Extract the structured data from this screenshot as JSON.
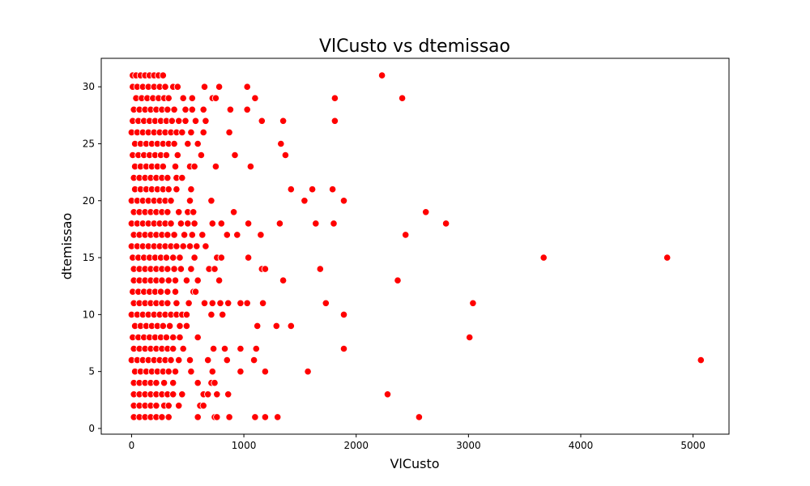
{
  "chart_data": {
    "type": "scatter",
    "title": "VlCusto vs dtemissao",
    "xlabel": "VlCusto",
    "ylabel": "dtemissao",
    "xlim": [
      -270,
      5320
    ],
    "ylim": [
      -0.5,
      32.5
    ],
    "xticks": [
      0,
      1000,
      2000,
      3000,
      4000,
      5000
    ],
    "yticks": [
      0,
      5,
      10,
      15,
      20,
      25,
      30
    ],
    "grid": false,
    "legend": "none",
    "marker_color": "#ff0000",
    "marker_edge_color": "#ffffff",
    "points": [
      [
        10,
        31
      ],
      [
        40,
        31
      ],
      [
        80,
        31
      ],
      [
        120,
        31
      ],
      [
        160,
        31
      ],
      [
        200,
        31
      ],
      [
        240,
        31
      ],
      [
        280,
        31
      ],
      [
        2230,
        31
      ],
      [
        10,
        30
      ],
      [
        50,
        30
      ],
      [
        100,
        30
      ],
      [
        150,
        30
      ],
      [
        200,
        30
      ],
      [
        250,
        30
      ],
      [
        300,
        30
      ],
      [
        370,
        30
      ],
      [
        410,
        30
      ],
      [
        650,
        30
      ],
      [
        780,
        30
      ],
      [
        1030,
        30
      ],
      [
        40,
        29
      ],
      [
        90,
        29
      ],
      [
        140,
        29
      ],
      [
        190,
        29
      ],
      [
        240,
        29
      ],
      [
        290,
        29
      ],
      [
        330,
        29
      ],
      [
        460,
        29
      ],
      [
        540,
        29
      ],
      [
        720,
        29
      ],
      [
        750,
        29
      ],
      [
        1100,
        29
      ],
      [
        1810,
        29
      ],
      [
        2410,
        29
      ],
      [
        20,
        28
      ],
      [
        70,
        28
      ],
      [
        120,
        28
      ],
      [
        170,
        28
      ],
      [
        220,
        28
      ],
      [
        270,
        28
      ],
      [
        320,
        28
      ],
      [
        380,
        28
      ],
      [
        480,
        28
      ],
      [
        540,
        28
      ],
      [
        640,
        28
      ],
      [
        880,
        28
      ],
      [
        1030,
        28
      ],
      [
        10,
        27
      ],
      [
        60,
        27
      ],
      [
        110,
        27
      ],
      [
        160,
        27
      ],
      [
        210,
        27
      ],
      [
        260,
        27
      ],
      [
        310,
        27
      ],
      [
        360,
        27
      ],
      [
        420,
        27
      ],
      [
        480,
        27
      ],
      [
        570,
        27
      ],
      [
        660,
        27
      ],
      [
        1160,
        27
      ],
      [
        1350,
        27
      ],
      [
        1810,
        27
      ],
      [
        0,
        26
      ],
      [
        50,
        26
      ],
      [
        100,
        26
      ],
      [
        150,
        26
      ],
      [
        200,
        26
      ],
      [
        250,
        26
      ],
      [
        300,
        26
      ],
      [
        350,
        26
      ],
      [
        400,
        26
      ],
      [
        450,
        26
      ],
      [
        530,
        26
      ],
      [
        640,
        26
      ],
      [
        870,
        26
      ],
      [
        30,
        25
      ],
      [
        80,
        25
      ],
      [
        130,
        25
      ],
      [
        180,
        25
      ],
      [
        230,
        25
      ],
      [
        280,
        25
      ],
      [
        330,
        25
      ],
      [
        380,
        25
      ],
      [
        500,
        25
      ],
      [
        590,
        25
      ],
      [
        1330,
        25
      ],
      [
        10,
        24
      ],
      [
        60,
        24
      ],
      [
        110,
        24
      ],
      [
        160,
        24
      ],
      [
        210,
        24
      ],
      [
        260,
        24
      ],
      [
        310,
        24
      ],
      [
        410,
        24
      ],
      [
        620,
        24
      ],
      [
        920,
        24
      ],
      [
        1370,
        24
      ],
      [
        30,
        23
      ],
      [
        80,
        23
      ],
      [
        130,
        23
      ],
      [
        180,
        23
      ],
      [
        230,
        23
      ],
      [
        280,
        23
      ],
      [
        390,
        23
      ],
      [
        520,
        23
      ],
      [
        560,
        23
      ],
      [
        750,
        23
      ],
      [
        1060,
        23
      ],
      [
        20,
        22
      ],
      [
        70,
        22
      ],
      [
        120,
        22
      ],
      [
        170,
        22
      ],
      [
        220,
        22
      ],
      [
        270,
        22
      ],
      [
        320,
        22
      ],
      [
        400,
        22
      ],
      [
        450,
        22
      ],
      [
        30,
        21
      ],
      [
        80,
        21
      ],
      [
        130,
        21
      ],
      [
        180,
        21
      ],
      [
        230,
        21
      ],
      [
        280,
        21
      ],
      [
        330,
        21
      ],
      [
        400,
        21
      ],
      [
        530,
        21
      ],
      [
        1420,
        21
      ],
      [
        1610,
        21
      ],
      [
        1790,
        21
      ],
      [
        0,
        20
      ],
      [
        50,
        20
      ],
      [
        100,
        20
      ],
      [
        150,
        20
      ],
      [
        200,
        20
      ],
      [
        250,
        20
      ],
      [
        300,
        20
      ],
      [
        350,
        20
      ],
      [
        520,
        20
      ],
      [
        710,
        20
      ],
      [
        1540,
        20
      ],
      [
        1890,
        20
      ],
      [
        20,
        19
      ],
      [
        70,
        19
      ],
      [
        120,
        19
      ],
      [
        170,
        19
      ],
      [
        220,
        19
      ],
      [
        270,
        19
      ],
      [
        320,
        19
      ],
      [
        420,
        19
      ],
      [
        500,
        19
      ],
      [
        550,
        19
      ],
      [
        910,
        19
      ],
      [
        2620,
        19
      ],
      [
        0,
        18
      ],
      [
        50,
        18
      ],
      [
        100,
        18
      ],
      [
        150,
        18
      ],
      [
        200,
        18
      ],
      [
        250,
        18
      ],
      [
        300,
        18
      ],
      [
        350,
        18
      ],
      [
        440,
        18
      ],
      [
        500,
        18
      ],
      [
        560,
        18
      ],
      [
        720,
        18
      ],
      [
        800,
        18
      ],
      [
        1040,
        18
      ],
      [
        1320,
        18
      ],
      [
        1640,
        18
      ],
      [
        1800,
        18
      ],
      [
        2800,
        18
      ],
      [
        20,
        17
      ],
      [
        70,
        17
      ],
      [
        120,
        17
      ],
      [
        170,
        17
      ],
      [
        220,
        17
      ],
      [
        270,
        17
      ],
      [
        320,
        17
      ],
      [
        380,
        17
      ],
      [
        470,
        17
      ],
      [
        540,
        17
      ],
      [
        630,
        17
      ],
      [
        850,
        17
      ],
      [
        940,
        17
      ],
      [
        1150,
        17
      ],
      [
        2440,
        17
      ],
      [
        0,
        16
      ],
      [
        50,
        16
      ],
      [
        100,
        16
      ],
      [
        150,
        16
      ],
      [
        200,
        16
      ],
      [
        250,
        16
      ],
      [
        300,
        16
      ],
      [
        350,
        16
      ],
      [
        400,
        16
      ],
      [
        460,
        16
      ],
      [
        520,
        16
      ],
      [
        580,
        16
      ],
      [
        660,
        16
      ],
      [
        10,
        15
      ],
      [
        60,
        15
      ],
      [
        110,
        15
      ],
      [
        160,
        15
      ],
      [
        210,
        15
      ],
      [
        260,
        15
      ],
      [
        310,
        15
      ],
      [
        370,
        15
      ],
      [
        430,
        15
      ],
      [
        560,
        15
      ],
      [
        760,
        15
      ],
      [
        800,
        15
      ],
      [
        1040,
        15
      ],
      [
        3670,
        15
      ],
      [
        4770,
        15
      ],
      [
        20,
        14
      ],
      [
        70,
        14
      ],
      [
        120,
        14
      ],
      [
        170,
        14
      ],
      [
        220,
        14
      ],
      [
        270,
        14
      ],
      [
        320,
        14
      ],
      [
        380,
        14
      ],
      [
        440,
        14
      ],
      [
        530,
        14
      ],
      [
        690,
        14
      ],
      [
        740,
        14
      ],
      [
        1160,
        14
      ],
      [
        1190,
        14
      ],
      [
        1680,
        14
      ],
      [
        20,
        13
      ],
      [
        70,
        13
      ],
      [
        120,
        13
      ],
      [
        170,
        13
      ],
      [
        220,
        13
      ],
      [
        270,
        13
      ],
      [
        330,
        13
      ],
      [
        390,
        13
      ],
      [
        490,
        13
      ],
      [
        590,
        13
      ],
      [
        780,
        13
      ],
      [
        1350,
        13
      ],
      [
        2370,
        13
      ],
      [
        10,
        12
      ],
      [
        60,
        12
      ],
      [
        110,
        12
      ],
      [
        160,
        12
      ],
      [
        210,
        12
      ],
      [
        260,
        12
      ],
      [
        320,
        12
      ],
      [
        390,
        12
      ],
      [
        550,
        12
      ],
      [
        570,
        12
      ],
      [
        20,
        11
      ],
      [
        70,
        11
      ],
      [
        120,
        11
      ],
      [
        170,
        11
      ],
      [
        220,
        11
      ],
      [
        270,
        11
      ],
      [
        320,
        11
      ],
      [
        400,
        11
      ],
      [
        510,
        11
      ],
      [
        650,
        11
      ],
      [
        720,
        11
      ],
      [
        790,
        11
      ],
      [
        860,
        11
      ],
      [
        970,
        11
      ],
      [
        1030,
        11
      ],
      [
        1170,
        11
      ],
      [
        1730,
        11
      ],
      [
        3040,
        11
      ],
      [
        0,
        10
      ],
      [
        50,
        10
      ],
      [
        100,
        10
      ],
      [
        150,
        10
      ],
      [
        200,
        10
      ],
      [
        250,
        10
      ],
      [
        300,
        10
      ],
      [
        350,
        10
      ],
      [
        400,
        10
      ],
      [
        450,
        10
      ],
      [
        490,
        10
      ],
      [
        710,
        10
      ],
      [
        810,
        10
      ],
      [
        1890,
        10
      ],
      [
        30,
        9
      ],
      [
        80,
        9
      ],
      [
        130,
        9
      ],
      [
        180,
        9
      ],
      [
        230,
        9
      ],
      [
        280,
        9
      ],
      [
        340,
        9
      ],
      [
        430,
        9
      ],
      [
        490,
        9
      ],
      [
        1120,
        9
      ],
      [
        1290,
        9
      ],
      [
        1420,
        9
      ],
      [
        10,
        8
      ],
      [
        60,
        8
      ],
      [
        110,
        8
      ],
      [
        160,
        8
      ],
      [
        210,
        8
      ],
      [
        260,
        8
      ],
      [
        310,
        8
      ],
      [
        370,
        8
      ],
      [
        430,
        8
      ],
      [
        590,
        8
      ],
      [
        3010,
        8
      ],
      [
        20,
        7
      ],
      [
        70,
        7
      ],
      [
        120,
        7
      ],
      [
        170,
        7
      ],
      [
        220,
        7
      ],
      [
        270,
        7
      ],
      [
        320,
        7
      ],
      [
        370,
        7
      ],
      [
        460,
        7
      ],
      [
        730,
        7
      ],
      [
        830,
        7
      ],
      [
        970,
        7
      ],
      [
        1110,
        7
      ],
      [
        1890,
        7
      ],
      [
        0,
        6
      ],
      [
        50,
        6
      ],
      [
        100,
        6
      ],
      [
        150,
        6
      ],
      [
        200,
        6
      ],
      [
        250,
        6
      ],
      [
        300,
        6
      ],
      [
        350,
        6
      ],
      [
        420,
        6
      ],
      [
        520,
        6
      ],
      [
        680,
        6
      ],
      [
        850,
        6
      ],
      [
        1090,
        6
      ],
      [
        5070,
        6
      ],
      [
        30,
        5
      ],
      [
        80,
        5
      ],
      [
        130,
        5
      ],
      [
        180,
        5
      ],
      [
        230,
        5
      ],
      [
        280,
        5
      ],
      [
        330,
        5
      ],
      [
        390,
        5
      ],
      [
        530,
        5
      ],
      [
        720,
        5
      ],
      [
        970,
        5
      ],
      [
        1190,
        5
      ],
      [
        1570,
        5
      ],
      [
        20,
        4
      ],
      [
        70,
        4
      ],
      [
        120,
        4
      ],
      [
        170,
        4
      ],
      [
        220,
        4
      ],
      [
        290,
        4
      ],
      [
        370,
        4
      ],
      [
        590,
        4
      ],
      [
        710,
        4
      ],
      [
        740,
        4
      ],
      [
        20,
        3
      ],
      [
        70,
        3
      ],
      [
        120,
        3
      ],
      [
        170,
        3
      ],
      [
        220,
        3
      ],
      [
        270,
        3
      ],
      [
        320,
        3
      ],
      [
        370,
        3
      ],
      [
        450,
        3
      ],
      [
        640,
        3
      ],
      [
        680,
        3
      ],
      [
        760,
        3
      ],
      [
        860,
        3
      ],
      [
        2280,
        3
      ],
      [
        20,
        2
      ],
      [
        70,
        2
      ],
      [
        120,
        2
      ],
      [
        170,
        2
      ],
      [
        220,
        2
      ],
      [
        290,
        2
      ],
      [
        330,
        2
      ],
      [
        420,
        2
      ],
      [
        610,
        2
      ],
      [
        640,
        2
      ],
      [
        20,
        1
      ],
      [
        70,
        1
      ],
      [
        120,
        1
      ],
      [
        170,
        1
      ],
      [
        220,
        1
      ],
      [
        270,
        1
      ],
      [
        330,
        1
      ],
      [
        590,
        1
      ],
      [
        740,
        1
      ],
      [
        760,
        1
      ],
      [
        870,
        1
      ],
      [
        1100,
        1
      ],
      [
        1190,
        1
      ],
      [
        1300,
        1
      ],
      [
        2560,
        1
      ]
    ]
  }
}
